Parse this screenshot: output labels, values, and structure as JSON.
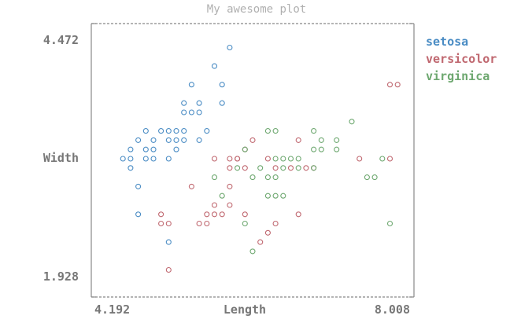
{
  "chart_data": {
    "type": "scatter",
    "title": "My awesome plot",
    "xlabel": "Length",
    "ylabel": "Width",
    "xlim": [
      4.192,
      8.008
    ],
    "ylim": [
      1.928,
      4.472
    ],
    "x_ticks": [
      "4.192",
      "8.008"
    ],
    "y_ticks": [
      "4.472",
      "1.928"
    ],
    "legend_position": "right",
    "colors": {
      "title": "#b0b0b0",
      "frame": "#888888",
      "text": "#777777"
    },
    "series": [
      {
        "name": "setosa",
        "color": "#4a8cc4",
        "points": [
          [
            5.8,
            4.4
          ],
          [
            5.6,
            4.2
          ],
          [
            5.3,
            4.0
          ],
          [
            5.7,
            4.0
          ],
          [
            5.2,
            3.8
          ],
          [
            5.4,
            3.8
          ],
          [
            5.7,
            3.8
          ],
          [
            5.2,
            3.7
          ],
          [
            5.3,
            3.7
          ],
          [
            5.4,
            3.7
          ],
          [
            4.7,
            3.5
          ],
          [
            4.9,
            3.5
          ],
          [
            5.0,
            3.5
          ],
          [
            5.1,
            3.5
          ],
          [
            5.2,
            3.5
          ],
          [
            5.5,
            3.5
          ],
          [
            4.6,
            3.4
          ],
          [
            4.8,
            3.4
          ],
          [
            5.0,
            3.4
          ],
          [
            5.1,
            3.4
          ],
          [
            5.2,
            3.4
          ],
          [
            5.4,
            3.4
          ],
          [
            4.5,
            3.3
          ],
          [
            4.7,
            3.3
          ],
          [
            4.8,
            3.3
          ],
          [
            5.1,
            3.3
          ],
          [
            4.4,
            3.2
          ],
          [
            4.5,
            3.2
          ],
          [
            4.7,
            3.2
          ],
          [
            4.8,
            3.2
          ],
          [
            5.0,
            3.2
          ],
          [
            4.5,
            3.1
          ],
          [
            4.6,
            2.9
          ],
          [
            4.6,
            2.6
          ],
          [
            5.0,
            2.3
          ]
        ]
      },
      {
        "name": "versicolor",
        "color": "#c06870",
        "points": [
          [
            7.9,
            4.0
          ],
          [
            8.0,
            4.0
          ],
          [
            6.1,
            3.4
          ],
          [
            6.7,
            3.4
          ],
          [
            6.0,
            3.3
          ],
          [
            7.9,
            3.2
          ],
          [
            5.9,
            3.2
          ],
          [
            5.6,
            3.2
          ],
          [
            5.8,
            3.2
          ],
          [
            5.9,
            3.2
          ],
          [
            6.3,
            3.2
          ],
          [
            7.5,
            3.2
          ],
          [
            5.8,
            3.1
          ],
          [
            6.0,
            3.1
          ],
          [
            6.4,
            3.1
          ],
          [
            6.6,
            3.1
          ],
          [
            6.8,
            3.1
          ],
          [
            6.9,
            3.1
          ],
          [
            5.3,
            2.9
          ],
          [
            5.8,
            2.9
          ],
          [
            5.6,
            2.7
          ],
          [
            5.8,
            2.7
          ],
          [
            4.9,
            2.6
          ],
          [
            5.5,
            2.6
          ],
          [
            5.6,
            2.6
          ],
          [
            5.7,
            2.6
          ],
          [
            6.0,
            2.6
          ],
          [
            6.7,
            2.6
          ],
          [
            5.4,
            2.5
          ],
          [
            6.4,
            2.5
          ],
          [
            4.9,
            2.5
          ],
          [
            5.0,
            2.5
          ],
          [
            5.5,
            2.5
          ],
          [
            6.3,
            2.4
          ],
          [
            6.2,
            2.3
          ],
          [
            5.0,
            2.0
          ]
        ]
      },
      {
        "name": "virginica",
        "color": "#6ea870",
        "points": [
          [
            7.4,
            3.6
          ],
          [
            6.3,
            3.5
          ],
          [
            6.4,
            3.5
          ],
          [
            6.9,
            3.5
          ],
          [
            7.0,
            3.4
          ],
          [
            7.2,
            3.4
          ],
          [
            6.0,
            3.3
          ],
          [
            6.9,
            3.3
          ],
          [
            7.0,
            3.3
          ],
          [
            7.2,
            3.3
          ],
          [
            6.4,
            3.2
          ],
          [
            6.5,
            3.2
          ],
          [
            6.6,
            3.2
          ],
          [
            6.7,
            3.2
          ],
          [
            7.8,
            3.2
          ],
          [
            5.9,
            3.1
          ],
          [
            6.2,
            3.1
          ],
          [
            6.5,
            3.1
          ],
          [
            6.7,
            3.1
          ],
          [
            6.9,
            3.1
          ],
          [
            5.6,
            3.0
          ],
          [
            6.1,
            3.0
          ],
          [
            6.3,
            3.0
          ],
          [
            6.4,
            3.0
          ],
          [
            7.6,
            3.0
          ],
          [
            7.7,
            3.0
          ],
          [
            6.3,
            2.8
          ],
          [
            6.4,
            2.8
          ],
          [
            5.7,
            2.8
          ],
          [
            6.5,
            2.8
          ],
          [
            6.0,
            2.5
          ],
          [
            7.9,
            2.5
          ],
          [
            6.1,
            2.2
          ]
        ]
      }
    ]
  }
}
